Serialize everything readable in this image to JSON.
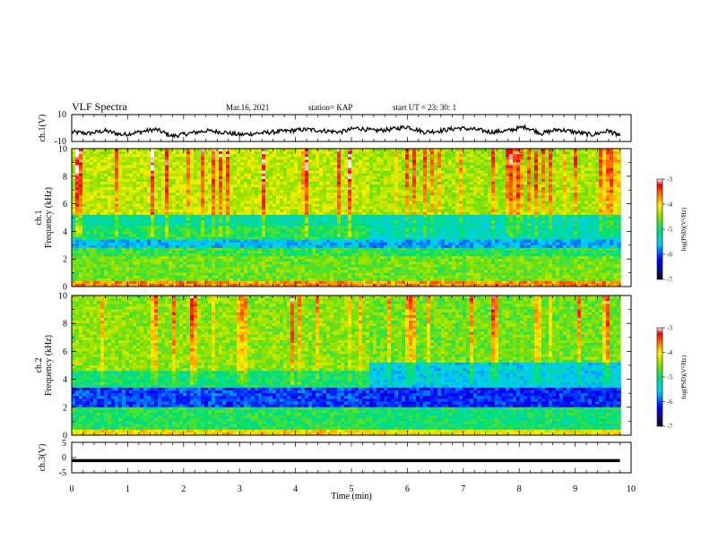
{
  "header": {
    "title": "VLF Spectra",
    "date": "Mar.16, 2021",
    "station": "station= KAP",
    "start": "start  UT  =   23: 30: 1"
  },
  "chart_data": [
    {
      "type": "line",
      "panel": "ch1-waveform",
      "ylabel": "ch.1(V)",
      "ylim": [
        -10,
        10
      ],
      "y_ticks": [
        "10",
        "-10"
      ],
      "xlim": [
        0,
        10
      ],
      "series": [
        {
          "color": "#000000",
          "x": [
            0.0,
            0.3,
            0.6,
            0.9,
            1.2,
            1.5,
            1.8,
            2.1,
            2.4,
            2.7,
            3.0,
            3.3,
            3.6,
            3.9,
            4.2,
            4.5,
            4.8,
            5.1,
            5.4,
            5.7,
            6.0,
            6.3,
            6.6,
            6.9,
            7.2,
            7.5,
            7.8,
            8.1,
            8.4,
            8.7,
            9.0,
            9.3,
            9.6,
            9.8
          ],
          "values": [
            -3,
            -4,
            -2,
            -5,
            -3,
            -1,
            -6,
            -4,
            -2,
            -3,
            -5,
            -4,
            -3,
            -2,
            -1,
            -2,
            -3,
            0,
            -2,
            -1,
            1,
            -3,
            -2,
            0,
            -1,
            -3,
            -2,
            1,
            -4,
            -1,
            -3,
            -5,
            -2,
            -6
          ]
        }
      ]
    },
    {
      "type": "heatmap",
      "panel": "ch1-spectrogram",
      "ylabel": "ch.1\nFrequency  (kHz)",
      "ylim": [
        0,
        10
      ],
      "y_ticks": [
        "0",
        "2",
        "4",
        "6",
        "8",
        "10"
      ],
      "xlim": [
        0,
        10
      ],
      "colorbar": {
        "label": "log(PSD)(V²/Hz)",
        "range": [
          -7,
          -3
        ],
        "ticks": [
          "-3",
          "-4",
          "-5",
          "-6",
          "-7"
        ]
      },
      "regime_change_min": 5.3,
      "bands_log_psd_before": [
        {
          "f": [
            0,
            2.2
          ],
          "v": -4.6
        },
        {
          "f": [
            2.2,
            2.9
          ],
          "v": -4.8
        },
        {
          "f": [
            2.9,
            3.5
          ],
          "v": -5.6
        },
        {
          "f": [
            3.5,
            4.5
          ],
          "v": -4.9
        },
        {
          "f": [
            4.5,
            5.3
          ],
          "v": -5.2
        },
        {
          "f": [
            5.3,
            10
          ],
          "v": -4.3
        }
      ],
      "bands_log_psd_after": [
        {
          "f": [
            0,
            2.2
          ],
          "v": -4.6
        },
        {
          "f": [
            2.2,
            2.9
          ],
          "v": -4.9
        },
        {
          "f": [
            2.9,
            3.5
          ],
          "v": -5.7
        },
        {
          "f": [
            3.5,
            5.3
          ],
          "v": -5.3
        },
        {
          "f": [
            5.3,
            10
          ],
          "v": -4.4
        }
      ]
    },
    {
      "type": "heatmap",
      "panel": "ch2-spectrogram",
      "ylabel": "ch.2\nFrequency  (kHz)",
      "ylim": [
        0,
        10
      ],
      "y_ticks": [
        "0",
        "2",
        "4",
        "6",
        "8",
        "10"
      ],
      "xlim": [
        0,
        10
      ],
      "colorbar": {
        "label": "log(PSD)(V²/Hz)",
        "range": [
          -7,
          -3
        ],
        "ticks": [
          "-3",
          "-4",
          "-5",
          "-6",
          "-7"
        ]
      },
      "regime_change_min": 5.3,
      "bands_log_psd_before": [
        {
          "f": [
            0,
            2.0
          ],
          "v": -4.9
        },
        {
          "f": [
            2.0,
            3.5
          ],
          "v": -6.0
        },
        {
          "f": [
            3.5,
            4.6
          ],
          "v": -5.0
        },
        {
          "f": [
            4.6,
            10
          ],
          "v": -4.5
        }
      ],
      "bands_log_psd_after": [
        {
          "f": [
            0,
            2.0
          ],
          "v": -5.0
        },
        {
          "f": [
            2.0,
            3.5
          ],
          "v": -6.1
        },
        {
          "f": [
            3.5,
            5.2
          ],
          "v": -5.5
        },
        {
          "f": [
            5.2,
            10
          ],
          "v": -4.6
        }
      ]
    },
    {
      "type": "line",
      "panel": "ch3-waveform",
      "ylabel": "ch.3(V)",
      "ylim": [
        -5,
        5
      ],
      "y_ticks": [
        "5",
        "0",
        "-5"
      ],
      "xlim": [
        0,
        10
      ],
      "x_ticks": [
        "0",
        "1",
        "2",
        "3",
        "4",
        "5",
        "6",
        "7",
        "8",
        "9",
        "10"
      ],
      "xlabel": "Time  (min)",
      "series": [
        {
          "color": "#000000",
          "x": [
            0,
            9.8
          ],
          "values": [
            -1,
            -1
          ],
          "band_halfwidth_v": 0.5
        }
      ]
    }
  ]
}
